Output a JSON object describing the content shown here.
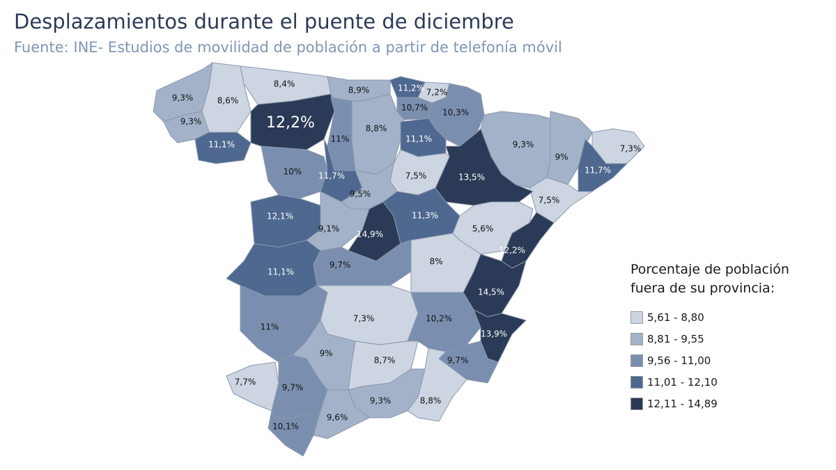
{
  "header": {
    "title": "Desplazamientos durante el puente de diciembre",
    "subtitle": "Fuente: INE- Estudios de movilidad de población a partir de telefonía móvil"
  },
  "legend": {
    "title_line1": "Porcentaje de población",
    "title_line2": "fuera de su provincia:",
    "classes": [
      {
        "label": "5,61 - 8,80",
        "color": "#cdd5e2"
      },
      {
        "label": "8,81 - 9,55",
        "color": "#a3b2c9"
      },
      {
        "label": "9,56 - 11,00",
        "color": "#7a8fb0"
      },
      {
        "label": "11,01 - 12,10",
        "color": "#4e6890"
      },
      {
        "label": "12,11 - 14,89",
        "color": "#2b3a56"
      }
    ]
  },
  "regions": [
    {
      "label": "9,3%",
      "value": 9.3,
      "class": 1
    },
    {
      "label": "8,6%",
      "value": 8.6,
      "class": 0
    },
    {
      "label": "8,4%",
      "value": 8.4,
      "class": 0
    },
    {
      "label": "9,3%",
      "value": 9.3,
      "class": 1
    },
    {
      "label": "11,1%",
      "value": 11.1,
      "class": 3
    },
    {
      "label": "12,2%",
      "value": 12.2,
      "class": 4
    },
    {
      "label": "8,9%",
      "value": 8.9,
      "class": 1
    },
    {
      "label": "11,2%",
      "value": 11.2,
      "class": 3
    },
    {
      "label": "7,2%",
      "value": 7.2,
      "class": 0
    },
    {
      "label": "10,7%",
      "value": 10.7,
      "class": 2
    },
    {
      "label": "10,3%",
      "value": 10.3,
      "class": 2
    },
    {
      "label": "11%",
      "value": 11,
      "class": 2
    },
    {
      "label": "8,8%",
      "value": 8.8,
      "class": 1
    },
    {
      "label": "11,1%",
      "value": 11.1,
      "class": 3
    },
    {
      "label": "9,3%",
      "value": 9.3,
      "class": 1
    },
    {
      "label": "9%",
      "value": 9,
      "class": 1
    },
    {
      "label": "7,3%",
      "value": 7.3,
      "class": 0
    },
    {
      "label": "11,7%",
      "value": 11.7,
      "class": 3
    },
    {
      "label": "7,5%",
      "value": 7.5,
      "class": 0
    },
    {
      "label": "13,5%",
      "value": 13.5,
      "class": 4
    },
    {
      "label": "7,5%",
      "value": 7.5,
      "class": 0
    },
    {
      "label": "10%",
      "value": 10,
      "class": 2
    },
    {
      "label": "11,7%",
      "value": 11.7,
      "class": 3
    },
    {
      "label": "9,5%",
      "value": 9.5,
      "class": 1
    },
    {
      "label": "12,1%",
      "value": 12.1,
      "class": 3
    },
    {
      "label": "9,1%",
      "value": 9.1,
      "class": 1
    },
    {
      "label": "14,9%",
      "value": 14.9,
      "class": 4
    },
    {
      "label": "11,3%",
      "value": 11.3,
      "class": 3
    },
    {
      "label": "5,6%",
      "value": 5.6,
      "class": 0
    },
    {
      "label": "12,2%",
      "value": 12.2,
      "class": 4
    },
    {
      "label": "11,1%",
      "value": 11.1,
      "class": 3
    },
    {
      "label": "9,7%",
      "value": 9.7,
      "class": 2
    },
    {
      "label": "8%",
      "value": 8,
      "class": 0
    },
    {
      "label": "14,5%",
      "value": 14.5,
      "class": 4
    },
    {
      "label": "11%",
      "value": 11,
      "class": 2
    },
    {
      "label": "7,3%",
      "value": 7.3,
      "class": 0
    },
    {
      "label": "10,2%",
      "value": 10.2,
      "class": 2
    },
    {
      "label": "13,9%",
      "value": 13.9,
      "class": 4
    },
    {
      "label": "9,7%",
      "value": 9.7,
      "class": 2
    },
    {
      "label": "7,7%",
      "value": 7.7,
      "class": 0
    },
    {
      "label": "9,7%",
      "value": 9.7,
      "class": 2
    },
    {
      "label": "9%",
      "value": 9,
      "class": 1
    },
    {
      "label": "8,7%",
      "value": 8.7,
      "class": 0
    },
    {
      "label": "9,3%",
      "value": 9.3,
      "class": 1
    },
    {
      "label": "8,8%",
      "value": 8.8,
      "class": 0
    },
    {
      "label": "9,6%",
      "value": 9.6,
      "class": 1
    },
    {
      "label": "10,1%",
      "value": 10.1,
      "class": 2
    }
  ]
}
